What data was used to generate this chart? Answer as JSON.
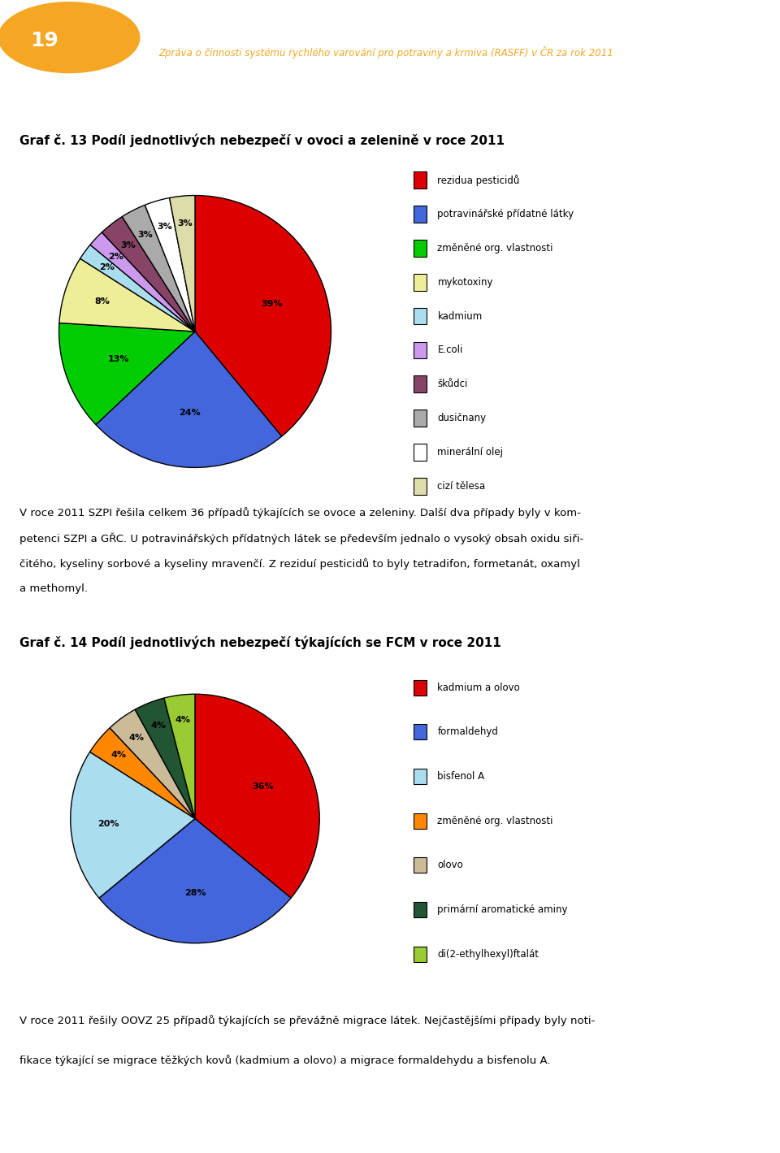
{
  "page_title": "Zpráva o činnosti systému rychlého varování pro potraviny a krmiva (RASFF) v ČR za rok 2011",
  "page_number": "19",
  "chart1_title": "Graf č. 13 Podíl jednotlivých nebezpečí v ovoci a zelenině v roce 2011",
  "chart1_labels": [
    "rezidua pesticidů",
    "potravinářské přídatné látky",
    "změněné org. vlastnosti",
    "mykotoxiny",
    "kadmium",
    "E.coli",
    "škůdci",
    "dusičnany",
    "minerální olej",
    "cizí tělesa"
  ],
  "chart1_values": [
    39,
    24,
    13,
    8,
    2,
    2,
    3,
    3,
    3,
    3
  ],
  "chart1_colors": [
    "#dd0000",
    "#4466dd",
    "#00cc00",
    "#eeee99",
    "#aaddee",
    "#cc99ee",
    "#884466",
    "#aaaaaa",
    "#ffffff",
    "#ddddaa"
  ],
  "chart1_startangle": 90,
  "chart2_title": "Graf č. 14 Podíl jednotlivých nebezpečí týkajících se FCM v roce 2011",
  "chart2_labels": [
    "kadmium a olovo",
    "formaldehyd",
    "bisfenol A",
    "změněné org. vlastnosti",
    "olovo",
    "primární aromatické aminy",
    "di(2-ethylhexyl)ftalát"
  ],
  "chart2_values": [
    36,
    28,
    20,
    4,
    4,
    4,
    4
  ],
  "chart2_colors": [
    "#dd0000",
    "#4466dd",
    "#aaddee",
    "#ff8800",
    "#ccbb99",
    "#225533",
    "#99cc33"
  ],
  "chart2_startangle": 90,
  "text1_lines": [
    "V roce 2011 SZPI řešila celkem 36 případů týkajících se ovoce a zeleniny. Další dva případy byly v kom-",
    "petenci SZPI a GŘC. U potravinářských přídatných látek se především jednalo o vysoký obsah oxidu siři-",
    "čitého, kyseliny sorbové a kyseliny mravenčí. Z reziduí pesticidů to byly tetradifon, formetanát, oxamyl",
    "a methomyl."
  ],
  "text2_lines": [
    "V roce 2011 řešily OOVZ 25 případů týkajících se převážně migrace látek. Nejčastějšími případy byly noti-",
    "fikace týkající se migrace těžkých kovů (kadmium a olovo) a migrace formaldehydu a bisfenolu A."
  ],
  "header_orange": "#f5a623",
  "header_text_color": "#f5a623",
  "background_color": "#ffffff"
}
